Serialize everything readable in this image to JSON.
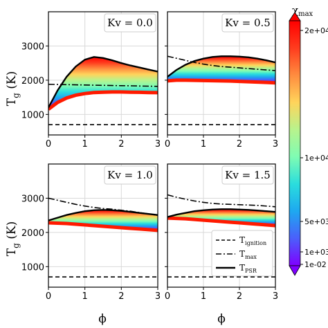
{
  "figure": {
    "ylabel_main": "T",
    "ylabel_sub": "g",
    "ylabel_unit": " (K)",
    "xlabel": "ϕ",
    "colorbar_title_main": "χ",
    "colorbar_title_sub": "max"
  },
  "legend": {
    "items": [
      {
        "main": "T",
        "sub": "ignition",
        "style": "dashed"
      },
      {
        "main": "T",
        "sub": "max",
        "style": "dashdot"
      },
      {
        "main": "T",
        "sub": "PSR",
        "style": "solid"
      }
    ]
  },
  "colorbar": {
    "tick_labels": [
      "2e+04",
      "1e+04",
      "5e+03",
      "1e+03",
      "1e-02"
    ],
    "colormap": "rainbow",
    "colors_low_to_high": [
      "#7f00ff",
      "#4b5ffb",
      "#1ea8f0",
      "#2adddd",
      "#7ffcb3",
      "#b8f38d",
      "#ffd45b",
      "#ff8c3f",
      "#ff3c1e",
      "#ff0000"
    ]
  },
  "chart_data": [
    {
      "type": "area",
      "annotation": "Kv = 0.0",
      "x": [
        0,
        0.25,
        0.5,
        0.75,
        1.0,
        1.25,
        1.5,
        1.75,
        2.0,
        2.25,
        2.5,
        2.75,
        3.0
      ],
      "series": [
        {
          "name": "T_ignition",
          "style": "dashed",
          "values": [
            700,
            700,
            700,
            700,
            700,
            700,
            700,
            700,
            700,
            700,
            700,
            700,
            700
          ]
        },
        {
          "name": "T_max",
          "style": "dashdot",
          "values": [
            1880,
            1875,
            1870,
            1865,
            1860,
            1855,
            1850,
            1845,
            1840,
            1835,
            1830,
            1825,
            1820
          ]
        },
        {
          "name": "T_PSR",
          "style": "solid",
          "values": [
            1200,
            1700,
            2100,
            2400,
            2600,
            2680,
            2650,
            2580,
            2500,
            2430,
            2370,
            2310,
            2250
          ]
        },
        {
          "name": "band_upper",
          "values": [
            1200,
            1700,
            2100,
            2400,
            2600,
            2680,
            2650,
            2580,
            2500,
            2430,
            2370,
            2310,
            2250
          ]
        },
        {
          "name": "band_lower",
          "values": [
            1150,
            1350,
            1480,
            1560,
            1610,
            1640,
            1650,
            1655,
            1655,
            1650,
            1645,
            1640,
            1635
          ]
        }
      ],
      "xlim": [
        0,
        3
      ],
      "ylim": [
        400,
        4000
      ],
      "xticks": [
        0,
        1,
        2,
        3
      ],
      "yticks": [
        1000,
        2000,
        3000
      ],
      "grid": true
    },
    {
      "type": "area",
      "annotation": "Kv = 0.5",
      "x": [
        0,
        0.25,
        0.5,
        0.75,
        1.0,
        1.25,
        1.5,
        1.75,
        2.0,
        2.25,
        2.5,
        2.75,
        3.0
      ],
      "series": [
        {
          "name": "T_ignition",
          "style": "dashed",
          "values": [
            700,
            700,
            700,
            700,
            700,
            700,
            700,
            700,
            700,
            700,
            700,
            700,
            700
          ]
        },
        {
          "name": "T_max",
          "style": "dashdot",
          "values": [
            2700,
            2640,
            2580,
            2520,
            2470,
            2430,
            2400,
            2380,
            2360,
            2340,
            2320,
            2300,
            2280
          ]
        },
        {
          "name": "T_PSR",
          "style": "solid",
          "values": [
            2100,
            2300,
            2450,
            2560,
            2630,
            2680,
            2700,
            2700,
            2690,
            2670,
            2630,
            2580,
            2520
          ]
        },
        {
          "name": "band_upper",
          "values": [
            2100,
            2300,
            2450,
            2560,
            2630,
            2680,
            2700,
            2700,
            2690,
            2670,
            2630,
            2580,
            2520
          ]
        },
        {
          "name": "band_lower",
          "values": [
            1980,
            2000,
            2000,
            1995,
            1990,
            1985,
            1980,
            1975,
            1965,
            1955,
            1945,
            1935,
            1920
          ]
        }
      ],
      "xlim": [
        0,
        3
      ],
      "ylim": [
        400,
        4000
      ],
      "xticks": [
        0,
        1,
        2,
        3
      ],
      "yticks": [
        1000,
        2000,
        3000
      ],
      "grid": true
    },
    {
      "type": "area",
      "annotation": "Kv = 1.0",
      "x": [
        0,
        0.25,
        0.5,
        0.75,
        1.0,
        1.25,
        1.5,
        1.75,
        2.0,
        2.25,
        2.5,
        2.75,
        3.0
      ],
      "series": [
        {
          "name": "T_ignition",
          "style": "dashed",
          "values": [
            700,
            700,
            700,
            700,
            700,
            700,
            700,
            700,
            700,
            700,
            700,
            700,
            700
          ]
        },
        {
          "name": "T_max",
          "style": "dashdot",
          "values": [
            3000,
            2940,
            2880,
            2820,
            2770,
            2730,
            2700,
            2680,
            2650,
            2620,
            2580,
            2540,
            2500
          ]
        },
        {
          "name": "T_PSR",
          "style": "solid",
          "values": [
            2350,
            2430,
            2510,
            2570,
            2620,
            2650,
            2660,
            2650,
            2630,
            2600,
            2570,
            2540,
            2510
          ]
        },
        {
          "name": "band_upper",
          "values": [
            2350,
            2430,
            2510,
            2570,
            2620,
            2650,
            2660,
            2650,
            2630,
            2600,
            2570,
            2540,
            2510
          ]
        },
        {
          "name": "band_lower",
          "values": [
            2280,
            2270,
            2260,
            2240,
            2220,
            2200,
            2180,
            2160,
            2140,
            2120,
            2100,
            2080,
            2060
          ]
        }
      ],
      "xlim": [
        0,
        3
      ],
      "ylim": [
        400,
        4000
      ],
      "xticks": [
        0,
        1,
        2,
        3
      ],
      "yticks": [
        1000,
        2000,
        3000
      ],
      "grid": true
    },
    {
      "type": "area",
      "annotation": "Kv = 1.5",
      "x": [
        0,
        0.25,
        0.5,
        0.75,
        1.0,
        1.25,
        1.5,
        1.75,
        2.0,
        2.25,
        2.5,
        2.75,
        3.0
      ],
      "series": [
        {
          "name": "T_ignition",
          "style": "dashed",
          "values": [
            700,
            700,
            700,
            700,
            700,
            700,
            700,
            700,
            700,
            700,
            700,
            700,
            700
          ]
        },
        {
          "name": "T_max",
          "style": "dashdot",
          "values": [
            3100,
            3030,
            2970,
            2920,
            2880,
            2850,
            2830,
            2820,
            2810,
            2800,
            2790,
            2770,
            2750
          ]
        },
        {
          "name": "T_PSR",
          "style": "solid",
          "values": [
            2450,
            2520,
            2570,
            2620,
            2650,
            2670,
            2680,
            2680,
            2670,
            2660,
            2640,
            2620,
            2600
          ]
        },
        {
          "name": "band_upper",
          "values": [
            2450,
            2520,
            2570,
            2620,
            2650,
            2670,
            2680,
            2680,
            2670,
            2660,
            2640,
            2620,
            2600
          ]
        },
        {
          "name": "band_lower",
          "values": [
            2420,
            2410,
            2400,
            2380,
            2360,
            2340,
            2320,
            2300,
            2280,
            2260,
            2240,
            2220,
            2200
          ]
        }
      ],
      "xlim": [
        0,
        3
      ],
      "ylim": [
        400,
        4000
      ],
      "xticks": [
        0,
        1,
        2,
        3
      ],
      "yticks": [
        1000,
        2000,
        3000
      ],
      "grid": true
    }
  ]
}
